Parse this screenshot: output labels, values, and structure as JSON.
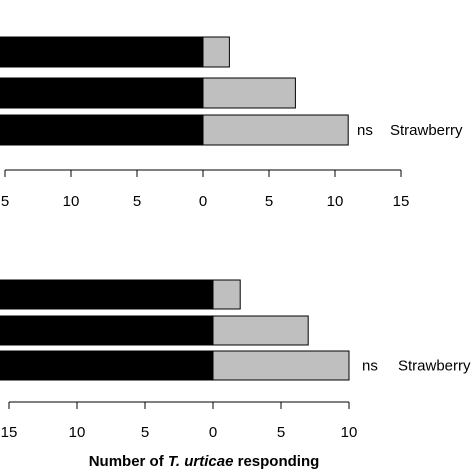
{
  "chart_data": [
    {
      "type": "bar",
      "orientation": "horizontal",
      "stacked": "diverging",
      "series": [
        {
          "name": "",
          "color": "#000000",
          "values": [
            null,
            null,
            null
          ]
        },
        {
          "name": "",
          "color": "#bfbfbf",
          "values": [
            2,
            7,
            11
          ]
        }
      ],
      "row_annotations": [
        "",
        "",
        "ns"
      ],
      "row_labels": [
        "",
        "",
        "Strawberry"
      ],
      "tick_labels": [
        "5",
        "10",
        "5",
        "0",
        "5",
        "10",
        "15"
      ],
      "xlim": [
        -15,
        15
      ],
      "xlabel": ""
    },
    {
      "type": "bar",
      "orientation": "horizontal",
      "stacked": "diverging",
      "series": [
        {
          "name": "",
          "color": "#000000",
          "values": [
            null,
            null,
            null
          ]
        },
        {
          "name": "",
          "color": "#bfbfbf",
          "values": [
            2,
            7,
            10
          ]
        }
      ],
      "row_annotations": [
        "",
        "",
        "ns"
      ],
      "row_labels": [
        "",
        "",
        "Strawberry"
      ],
      "tick_labels": [
        "15",
        "10",
        "5",
        "0",
        "5",
        "10"
      ],
      "xlim": [
        -15,
        10
      ],
      "xlabel_parts": [
        {
          "text": "Number of ",
          "italic": false
        },
        {
          "text": "T. urticae",
          "italic": true
        },
        {
          "text": " responding",
          "italic": false
        }
      ]
    }
  ],
  "colors": {
    "left_bar": "#000000",
    "right_bar": "#bfbfbf",
    "axis": "#000000"
  }
}
